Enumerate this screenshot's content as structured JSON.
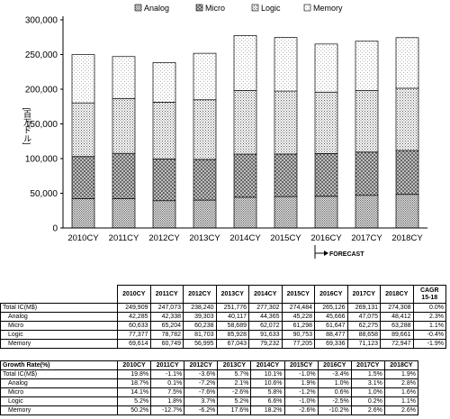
{
  "chart_data": {
    "type": "bar",
    "stacked": true,
    "categories": [
      "2010CY",
      "2011CY",
      "2012CY",
      "2013CY",
      "2014CY",
      "2015CY",
      "2016CY",
      "2017CY",
      "2018CY"
    ],
    "series": [
      {
        "name": "Analog",
        "values": [
          42285,
          42338,
          39303,
          40117,
          44365,
          45228,
          45666,
          47075,
          48412
        ],
        "pattern": "dots-dense"
      },
      {
        "name": "Micro",
        "values": [
          60633,
          65204,
          60238,
          58689,
          62072,
          61298,
          61647,
          62275,
          63288
        ],
        "pattern": "crosshatch"
      },
      {
        "name": "Logic",
        "values": [
          77377,
          78782,
          81703,
          85928,
          91633,
          90753,
          88477,
          88658,
          89661
        ],
        "pattern": "dots-medium"
      },
      {
        "name": "Memory",
        "values": [
          69614,
          60749,
          56995,
          67043,
          79232,
          77205,
          69336,
          71123,
          72947
        ],
        "pattern": "dots-sparse"
      }
    ],
    "ylabel": "[百万ドル]",
    "ylim": [
      0,
      300000
    ],
    "yticks": [
      "0",
      "50,000",
      "100,000",
      "150,000",
      "200,000",
      "250,000",
      "300,000"
    ],
    "ytick_values": [
      0,
      50000,
      100000,
      150000,
      200000,
      250000,
      300000
    ],
    "legend_position": "top",
    "grid": false,
    "annotation": "FORECAST"
  },
  "table1": {
    "headers": [
      "",
      "2010CY",
      "2011CY",
      "2012CY",
      "2013CY",
      "2014CY",
      "2015CY",
      "2016CY",
      "2017CY",
      "2018CY",
      "CAGR 15-18"
    ],
    "rows": [
      {
        "label": "Total IC(M$)",
        "indent": false,
        "values": [
          "249,909",
          "247,073",
          "238,240",
          "251,776",
          "277,302",
          "274,484",
          "265,126",
          "269,131",
          "274,308",
          "0.0%"
        ]
      },
      {
        "label": "Analog",
        "indent": true,
        "values": [
          "42,285",
          "42,338",
          "39,303",
          "40,117",
          "44,365",
          "45,228",
          "45,666",
          "47,075",
          "48,412",
          "2.3%"
        ]
      },
      {
        "label": "Micro",
        "indent": true,
        "values": [
          "60,633",
          "65,204",
          "60,238",
          "58,689",
          "62,072",
          "61,298",
          "61,647",
          "62,275",
          "63,288",
          "1.1%"
        ]
      },
      {
        "label": "Logic",
        "indent": true,
        "values": [
          "77,377",
          "78,782",
          "81,703",
          "85,928",
          "91,633",
          "90,753",
          "88,477",
          "88,658",
          "89,661",
          "-0.4%"
        ]
      },
      {
        "label": "Memory",
        "indent": true,
        "values": [
          "69,614",
          "60,749",
          "56,995",
          "67,043",
          "79,232",
          "77,205",
          "69,336",
          "71,123",
          "72,947",
          "-1.9%"
        ]
      }
    ]
  },
  "table2": {
    "headers": [
      "Growth Rate(%)",
      "2010CY",
      "2011CY",
      "2012CY",
      "2013CY",
      "2014CY",
      "2015CY",
      "2016CY",
      "2017CY",
      "2018CY"
    ],
    "rows": [
      {
        "label": "Total IC(M$)",
        "indent": false,
        "values": [
          "19.8%",
          "-1.1%",
          "-3.6%",
          "5.7%",
          "10.1%",
          "-1.0%",
          "-3.4%",
          "1.5%",
          "1.9%"
        ]
      },
      {
        "label": "Analog",
        "indent": true,
        "values": [
          "18.7%",
          "0.1%",
          "-7.2%",
          "2.1%",
          "10.6%",
          "1.9%",
          "1.0%",
          "3.1%",
          "2.8%"
        ]
      },
      {
        "label": "Micro",
        "indent": true,
        "values": [
          "14.1%",
          "7.5%",
          "-7.6%",
          "-2.6%",
          "5.8%",
          "-1.2%",
          "0.6%",
          "1.0%",
          "1.6%"
        ]
      },
      {
        "label": "Logic",
        "indent": true,
        "values": [
          "5.2%",
          "1.8%",
          "3.7%",
          "5.2%",
          "6.6%",
          "-1.0%",
          "-2.5%",
          "0.2%",
          "1.1%"
        ]
      },
      {
        "label": "Memory",
        "indent": true,
        "values": [
          "50.2%",
          "-12.7%",
          "-6.2%",
          "17.6%",
          "18.2%",
          "-2.6%",
          "-10.2%",
          "2.6%",
          "2.6%"
        ]
      }
    ]
  }
}
